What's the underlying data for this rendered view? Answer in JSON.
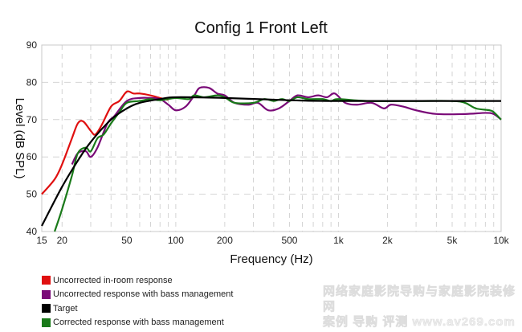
{
  "chart_data": {
    "type": "line",
    "title": "Config 1 Front Left",
    "xlabel": "Frequency (Hz)",
    "ylabel": "Level (dB SPL)",
    "xscale": "log",
    "xlim": [
      15,
      10000
    ],
    "ylim": [
      40,
      90
    ],
    "grid": true,
    "x_ticks": [
      15,
      20,
      50,
      100,
      200,
      500,
      1000,
      2000,
      5000,
      10000
    ],
    "x_tick_labels": [
      "15",
      "20",
      "50",
      "100",
      "200",
      "500",
      "1k",
      "2k",
      "5k",
      "10k"
    ],
    "y_ticks": [
      40,
      50,
      60,
      70,
      80,
      90
    ],
    "y_tick_labels": [
      "40",
      "50",
      "60",
      "70",
      "80",
      "90"
    ],
    "legend_position": "bottom-left",
    "series": [
      {
        "name": "Uncorrected in-room response",
        "color": "#e01010",
        "points": [
          [
            15,
            50
          ],
          [
            18,
            54
          ],
          [
            20,
            58
          ],
          [
            23,
            65
          ],
          [
            25,
            69
          ],
          [
            27,
            69.5
          ],
          [
            30,
            67
          ],
          [
            32,
            66
          ],
          [
            35,
            68.5
          ],
          [
            40,
            73.5
          ],
          [
            45,
            75
          ],
          [
            50,
            77.5
          ],
          [
            55,
            77
          ],
          [
            60,
            77
          ],
          [
            70,
            76.5
          ],
          [
            80,
            75.8
          ],
          [
            90,
            75.3
          ]
        ]
      },
      {
        "name": "Uncorrected response with bass management",
        "color": "#7a0a78",
        "points": [
          [
            23,
            58
          ],
          [
            25,
            61
          ],
          [
            28,
            61.5
          ],
          [
            30,
            60
          ],
          [
            33,
            62.5
          ],
          [
            38,
            69
          ],
          [
            42,
            71
          ],
          [
            50,
            75
          ],
          [
            60,
            75.8
          ],
          [
            70,
            75.8
          ],
          [
            80,
            75.5
          ],
          [
            90,
            74
          ],
          [
            100,
            72.5
          ],
          [
            115,
            73.5
          ],
          [
            130,
            76.5
          ],
          [
            140,
            78.5
          ],
          [
            160,
            78.5
          ],
          [
            180,
            77
          ],
          [
            200,
            76.5
          ],
          [
            230,
            74.5
          ],
          [
            280,
            74
          ],
          [
            320,
            74.5
          ],
          [
            370,
            72.5
          ],
          [
            430,
            73
          ],
          [
            500,
            75
          ],
          [
            560,
            76.5
          ],
          [
            650,
            76
          ],
          [
            750,
            76.5
          ],
          [
            850,
            76
          ],
          [
            950,
            77
          ],
          [
            1100,
            74.5
          ],
          [
            1300,
            74
          ],
          [
            1600,
            74.5
          ],
          [
            1900,
            73
          ],
          [
            2100,
            74
          ],
          [
            2500,
            73.5
          ],
          [
            3000,
            72.5
          ],
          [
            4000,
            71.5
          ],
          [
            6000,
            71.5
          ],
          [
            8000,
            71.8
          ],
          [
            9000,
            71.5
          ],
          [
            10000,
            70
          ]
        ]
      },
      {
        "name": "Target",
        "color": "#000000",
        "points": [
          [
            15,
            41.5
          ],
          [
            20,
            52
          ],
          [
            25,
            59
          ],
          [
            30,
            64
          ],
          [
            40,
            70
          ],
          [
            50,
            73
          ],
          [
            60,
            74.5
          ],
          [
            80,
            75.5
          ],
          [
            100,
            76
          ],
          [
            200,
            75.8
          ],
          [
            500,
            75.2
          ],
          [
            1000,
            75
          ],
          [
            10000,
            75
          ]
        ]
      },
      {
        "name": "Corrected response with bass management",
        "color": "#1a7a1a",
        "points": [
          [
            18,
            40
          ],
          [
            20,
            46
          ],
          [
            23,
            55
          ],
          [
            25,
            61
          ],
          [
            28,
            62.5
          ],
          [
            30,
            61.5
          ],
          [
            33,
            65
          ],
          [
            36,
            66
          ],
          [
            40,
            69
          ],
          [
            45,
            72
          ],
          [
            50,
            74.5
          ],
          [
            60,
            75
          ],
          [
            70,
            75.5
          ],
          [
            80,
            75.2
          ],
          [
            100,
            75.8
          ],
          [
            120,
            75.5
          ],
          [
            130,
            76.5
          ],
          [
            150,
            76
          ],
          [
            180,
            76.5
          ],
          [
            200,
            76
          ],
          [
            230,
            74.5
          ],
          [
            300,
            74.5
          ],
          [
            350,
            75.5
          ],
          [
            400,
            75
          ],
          [
            450,
            75.5
          ],
          [
            500,
            75
          ],
          [
            560,
            76
          ],
          [
            650,
            75.5
          ],
          [
            800,
            75.5
          ],
          [
            900,
            75
          ],
          [
            1000,
            75.5
          ],
          [
            1500,
            75
          ],
          [
            3000,
            75
          ],
          [
            5000,
            75
          ],
          [
            6000,
            74.5
          ],
          [
            7000,
            73
          ],
          [
            8500,
            72.5
          ],
          [
            9000,
            72
          ],
          [
            10000,
            70
          ]
        ]
      }
    ]
  },
  "watermark": {
    "line1": "网络家庭影院导购与家庭影院装修网",
    "line2": "案例 导购 评测 www.av269.com"
  }
}
